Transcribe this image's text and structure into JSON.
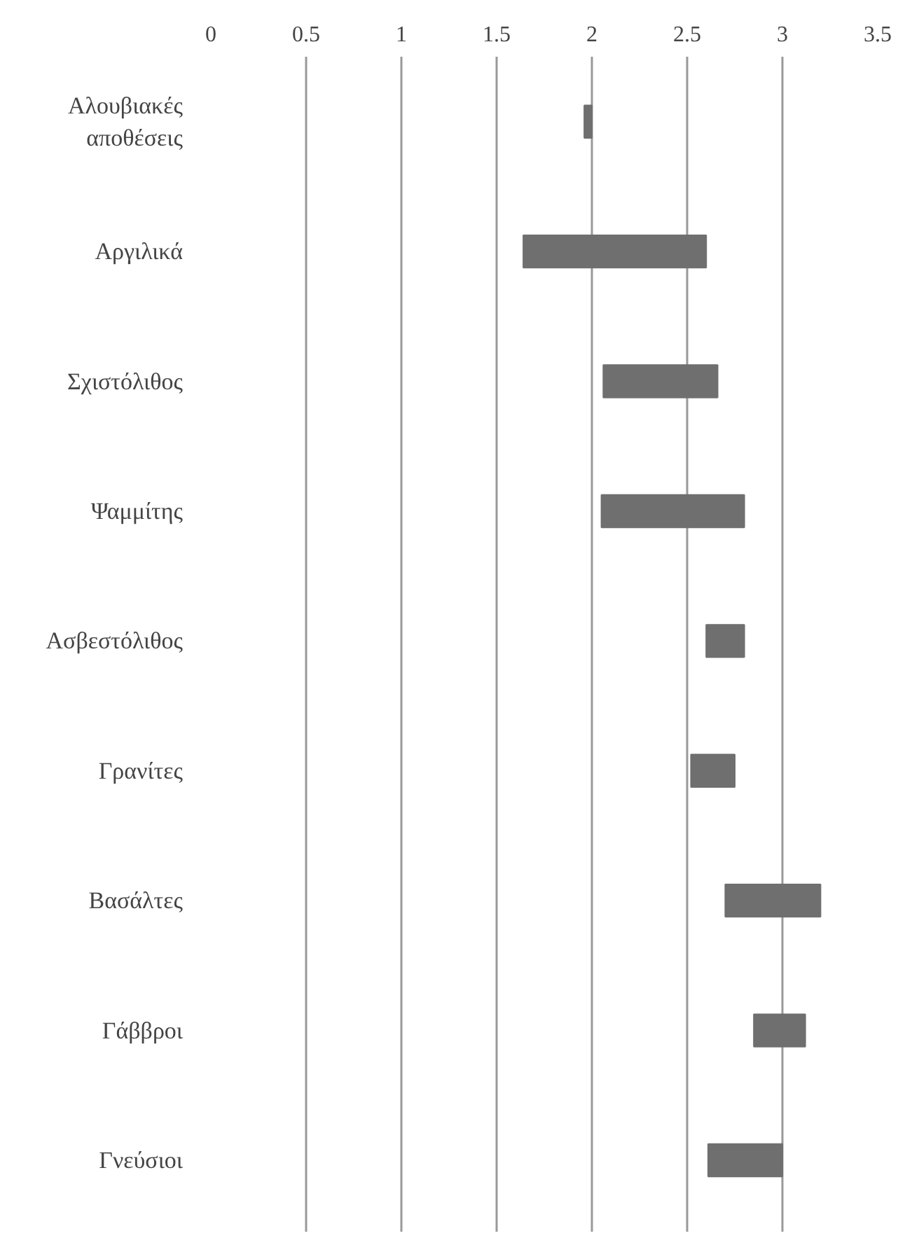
{
  "chart_data": {
    "type": "bar",
    "orientation": "horizontal",
    "categories": [
      "Αλουβιακές αποθέσεις",
      "Αργιλικά",
      "Σχιστόλιθος",
      "Ψαμμίτης",
      "Ασβεστόλιθος",
      "Γρανίτες",
      "Βασάλτες",
      "Γάββροι",
      "Γνεύσιοι"
    ],
    "base": [
      1.96,
      1.64,
      2.06,
      2.05,
      2.6,
      2.52,
      2.7,
      2.85,
      2.61
    ],
    "values": [
      0.04,
      0.96,
      0.6,
      0.75,
      0.2,
      0.23,
      0.5,
      0.27,
      0.39
    ],
    "color": "#6f6f6f",
    "xlim": [
      0,
      3.5
    ],
    "xticks": [
      0,
      0.5,
      1,
      1.5,
      2,
      2.5,
      3,
      3.5
    ],
    "grid": "x"
  }
}
